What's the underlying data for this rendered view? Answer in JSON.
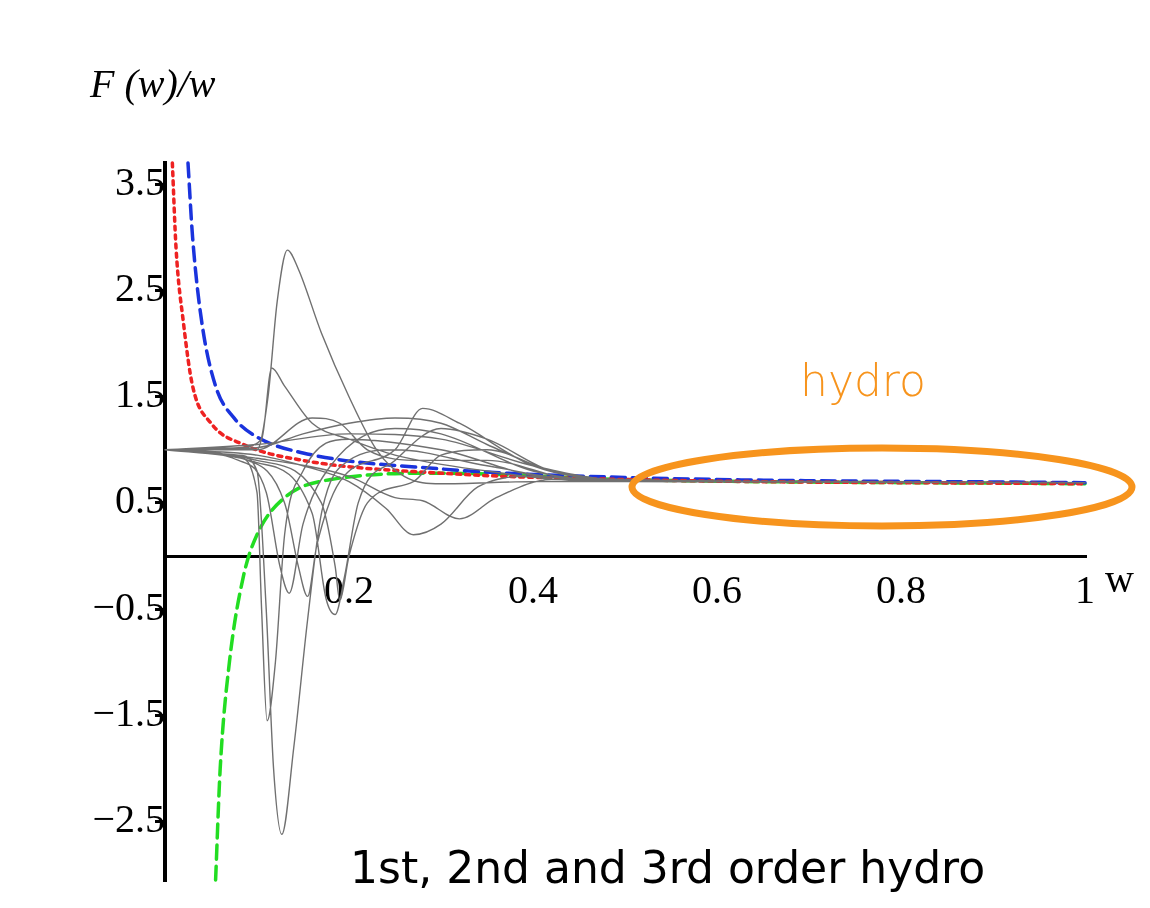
{
  "chart_data": {
    "type": "line",
    "xlabel": "w",
    "ylabel": "F (w)/w",
    "xlim": [
      0,
      1
    ],
    "xticks": [
      0.2,
      0.4,
      0.6,
      0.8,
      1
    ],
    "ylim": [
      -3.05,
      3.7
    ],
    "yticks": [
      {
        "value": 3.5,
        "label": "3.5"
      },
      {
        "value": 2.5,
        "label": "2.5"
      },
      {
        "value": 1.5,
        "label": "1.5"
      },
      {
        "value": 0.5,
        "label": "0.5"
      },
      {
        "value": -0.5,
        "label": "−0.5"
      },
      {
        "value": -1.5,
        "label": "−1.5"
      },
      {
        "value": -2.5,
        "label": "−2.5"
      }
    ],
    "marker": "none",
    "annotations": [
      "hydro",
      "1st, 2nd and 3rd order hydro"
    ],
    "series": [
      {
        "color": "#707070",
        "line_style": "solid",
        "x": [
          0,
          0.05,
          0.1,
          0.112,
          0.122,
          0.133,
          0.145,
          0.17,
          0.2,
          0.23,
          0.26,
          0.3,
          0.4,
          0.5,
          1,
          null,
          0,
          0.08,
          0.105,
          0.116,
          0.13,
          0.16,
          0.2,
          0.25,
          0.35,
          0.45,
          1,
          null,
          0,
          0.08,
          0.1,
          0.11,
          0.118,
          0.127,
          0.14,
          0.155,
          0.17,
          0.2,
          0.25,
          0.35,
          0.45,
          1,
          null,
          0,
          0.08,
          0.1,
          0.105,
          0.111,
          0.12,
          0.13,
          0.15,
          0.2,
          0.3,
          0.42,
          1,
          null,
          0,
          0.08,
          0.11,
          0.125,
          0.135,
          0.15,
          0.18,
          0.25,
          0.3,
          0.4,
          0.5,
          1,
          null,
          0,
          0.09,
          0.13,
          0.145,
          0.155,
          0.165,
          0.19,
          0.25,
          0.28,
          0.32,
          0.4,
          0.5,
          1,
          null,
          0,
          0.1,
          0.16,
          0.175,
          0.185,
          0.195,
          0.21,
          0.25,
          0.3,
          0.35,
          0.42,
          0.5,
          1,
          null,
          0,
          0.1,
          0.17,
          0.185,
          0.19,
          0.2,
          0.22,
          0.27,
          0.3,
          0.35,
          0.42,
          0.5,
          1,
          null,
          0,
          0.1,
          0.15,
          0.2,
          0.25,
          0.3,
          0.35,
          0.42,
          0.5,
          1,
          null,
          0,
          0.1,
          0.15,
          0.2,
          0.24,
          0.27,
          0.3,
          0.34,
          0.4,
          0.5,
          1,
          null,
          0,
          0.1,
          0.2,
          0.25,
          0.28,
          0.32,
          0.36,
          0.42,
          0.5,
          1,
          null,
          0,
          0.1,
          0.16,
          0.19,
          0.22,
          0.28,
          0.35,
          0.45,
          1,
          null,
          0,
          0.1,
          0.2,
          0.3,
          0.4,
          0.5,
          1
        ],
        "values": [
          1,
          1,
          1,
          1.5,
          2.4,
          2.88,
          2.7,
          2.1,
          1.5,
          1,
          0.75,
          0.68,
          0.7,
          0.7,
          0.69,
          null,
          1,
          1.02,
          1.1,
          1.77,
          1.6,
          1.25,
          1.1,
          0.95,
          0.8,
          0.71,
          0.69,
          null,
          1,
          0.95,
          0.8,
          -0.5,
          -2,
          -2.62,
          -1.8,
          -0.6,
          0.4,
          0.9,
          1,
          0.85,
          0.72,
          0.69,
          null,
          1,
          0.93,
          0.6,
          -0.5,
          -1.55,
          -1,
          0.2,
          0.8,
          1.1,
          1,
          0.74,
          0.69,
          null,
          1,
          0.9,
          0.6,
          -0.1,
          -0.35,
          0.3,
          0.85,
          1.2,
          1.15,
          0.8,
          0.7,
          0.69,
          null,
          1,
          0.9,
          0.5,
          -0.1,
          -0.38,
          0.1,
          0.7,
          1,
          1.39,
          1.25,
          0.85,
          0.71,
          0.69,
          null,
          1,
          0.88,
          0.4,
          -0.4,
          -0.55,
          -0.2,
          0.5,
          0.9,
          1.2,
          1.1,
          0.8,
          0.71,
          0.69,
          null,
          1,
          0.9,
          0.5,
          -0.1,
          -0.42,
          0,
          0.5,
          0.7,
          0.95,
          1,
          0.8,
          0.71,
          0.69,
          null,
          1,
          1.02,
          1.15,
          1.25,
          1.3,
          1.25,
          1.05,
          0.8,
          0.7,
          0.69,
          null,
          1,
          0.95,
          0.85,
          0.7,
          0.45,
          0.2,
          0.3,
          0.65,
          0.75,
          0.7,
          0.69,
          null,
          1,
          0.92,
          0.75,
          0.55,
          0.52,
          0.35,
          0.55,
          0.72,
          0.7,
          0.69,
          null,
          1,
          1,
          1.3,
          1.25,
          1,
          0.9,
          0.9,
          0.72,
          0.69,
          null,
          1,
          1.05,
          1.15,
          1.1,
          0.85,
          0.71,
          0.69
        ]
      },
      {
        "color": "#ee2222",
        "line_style": "dotted",
        "x": [
          0.008,
          0.012,
          0.02,
          0.03,
          0.05,
          0.085,
          0.15,
          0.3,
          0.5,
          1
        ],
        "values": [
          3.7,
          2.9,
          2.2,
          1.6,
          1.25,
          1.05,
          0.9,
          0.78,
          0.72,
          0.68
        ]
      },
      {
        "color": "#1a33dd",
        "line_style": "dashed",
        "x": [
          0.025,
          0.03,
          0.04,
          0.055,
          0.075,
          0.1,
          0.15,
          0.3,
          0.5,
          1
        ],
        "values": [
          3.7,
          3,
          2.2,
          1.6,
          1.3,
          1.12,
          0.97,
          0.82,
          0.74,
          0.69
        ]
      },
      {
        "color": "#22dd22",
        "line_style": "dashed",
        "x": [
          0.055,
          0.06,
          0.07,
          0.085,
          0.1,
          0.13,
          0.18,
          0.3,
          0.5,
          1
        ],
        "values": [
          -3.05,
          -2,
          -1,
          -0.2,
          0.2,
          0.55,
          0.72,
          0.78,
          0.72,
          0.68
        ]
      }
    ]
  }
}
